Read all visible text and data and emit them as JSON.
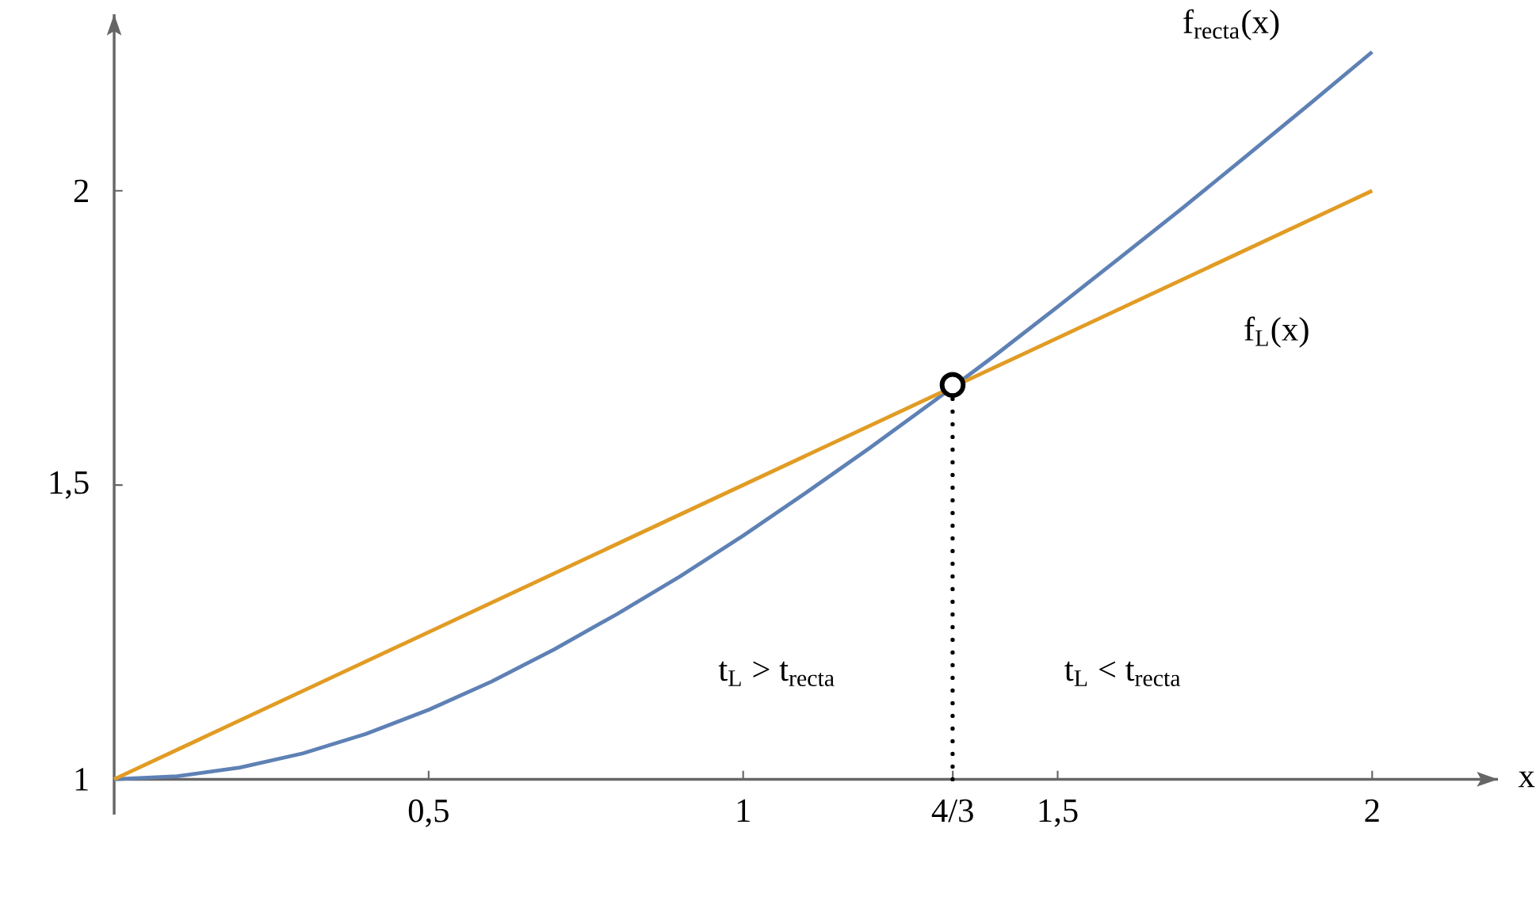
{
  "chart_data": {
    "type": "line",
    "xlabel": "x",
    "xlim": [
      0,
      2.2
    ],
    "ylim": [
      0.94,
      2.3
    ],
    "xticks": [
      {
        "value": 0.5,
        "label": "0,5"
      },
      1,
      {
        "value": 1.3333,
        "label": "4/3"
      },
      {
        "value": 1.5,
        "label": "1,5"
      },
      2
    ],
    "yticks": [
      1,
      {
        "value": 1.5,
        "label": "1,5"
      },
      2
    ],
    "series": [
      {
        "name": "f$_{recta}$(x)",
        "color": "#5e81b5",
        "x": [
          0,
          0.1,
          0.2,
          0.3,
          0.4,
          0.5,
          0.6,
          0.7,
          0.8,
          0.9,
          1.0,
          1.1,
          1.2,
          1.3,
          1.4,
          1.5,
          1.6,
          1.7,
          1.8,
          1.9,
          2.0
        ],
        "values": [
          1.0,
          1.005,
          1.02,
          1.044,
          1.077,
          1.118,
          1.166,
          1.221,
          1.281,
          1.345,
          1.414,
          1.487,
          1.562,
          1.64,
          1.72,
          1.803,
          1.887,
          1.972,
          2.059,
          2.147,
          2.236
        ]
      },
      {
        "name": "f$_{L}$(x)",
        "color": "#e19c24",
        "x": [
          0,
          2
        ],
        "values": [
          1,
          2
        ]
      },
      {
        "type": "line",
        "color": "#000000",
        "line_style": "dotted",
        "x": [
          1.333,
          1.333
        ],
        "values": [
          1,
          1.67
        ]
      },
      {
        "type": "scatter",
        "color": "#000000",
        "marker": "circle",
        "x": [
          1.333
        ],
        "values": [
          1.67
        ]
      }
    ],
    "annotations": [
      "t$_{L}$ > t$_{recta}$",
      "t$_{L}$ < t$_{recta}$"
    ]
  }
}
